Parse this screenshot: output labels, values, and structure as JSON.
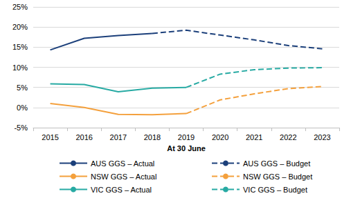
{
  "chart_data": {
    "type": "line",
    "x_label": "At 30 June",
    "categories": [
      "2015",
      "2016",
      "2017",
      "2018",
      "2019",
      "2020",
      "2021",
      "2022",
      "2023"
    ],
    "series": [
      {
        "name": "AUS GGS – Actual",
        "color": "#1b3f7a",
        "line_style": "solid",
        "values": [
          14.3,
          17.2,
          17.9,
          18.4,
          null,
          null,
          null,
          null,
          null
        ]
      },
      {
        "name": "AUS GGS – Budget",
        "color": "#1b3f7a",
        "line_style": "dashed",
        "values": [
          null,
          null,
          null,
          18.4,
          19.2,
          18.0,
          16.8,
          15.4,
          14.6
        ]
      },
      {
        "name": "NSW GGS – Actual",
        "color": "#f4a03c",
        "line_style": "solid",
        "values": [
          1.0,
          0.0,
          -1.7,
          -1.8,
          -1.5,
          null,
          null,
          null,
          null
        ]
      },
      {
        "name": "NSW GGS – Budget",
        "color": "#f4a03c",
        "line_style": "dashed",
        "values": [
          null,
          null,
          null,
          null,
          -1.5,
          1.9,
          3.4,
          4.7,
          5.2
        ]
      },
      {
        "name": "VIC GGS – Actual",
        "color": "#27aaa3",
        "line_style": "solid",
        "values": [
          5.9,
          5.7,
          3.9,
          4.8,
          5.0,
          null,
          null,
          null,
          null
        ]
      },
      {
        "name": "VIC GGS – Budget",
        "color": "#27aaa3",
        "line_style": "dashed",
        "values": [
          null,
          null,
          null,
          null,
          5.0,
          8.3,
          9.4,
          9.8,
          9.9
        ]
      }
    ],
    "ylim": [
      -5,
      25
    ],
    "yticks": [
      {
        "value": -5,
        "label": "-5%"
      },
      {
        "value": 0,
        "label": "0%"
      },
      {
        "value": 5,
        "label": "5%"
      },
      {
        "value": 10,
        "label": "10%"
      },
      {
        "value": 15,
        "label": "15%"
      },
      {
        "value": 20,
        "label": "20%"
      },
      {
        "value": 25,
        "label": "25%"
      }
    ],
    "grid": true,
    "legend": "bottom"
  }
}
